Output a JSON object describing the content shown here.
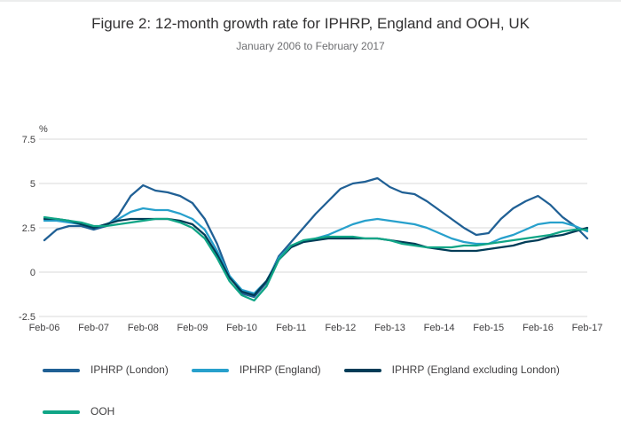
{
  "chart_data": {
    "type": "line",
    "title": "Figure 2: 12-month growth rate for IPHRP, England and OOH, UK",
    "subtitle": "January 2006 to February 2017",
    "ylabel": "%",
    "ylim": [
      -2.5,
      7.5
    ],
    "yticks": [
      7.5,
      5,
      2.5,
      0,
      -2.5
    ],
    "ytick_labels": [
      "7.5",
      "5",
      "2.5",
      "0",
      "-2.5"
    ],
    "xlim": [
      0,
      132
    ],
    "x_tick_positions": [
      0,
      12,
      24,
      36,
      48,
      60,
      72,
      84,
      96,
      108,
      120,
      132
    ],
    "x_tick_labels": [
      "Feb-06",
      "Feb-07",
      "Feb-08",
      "Feb-09",
      "Feb-10",
      "Feb-11",
      "Feb-12",
      "Feb-13",
      "Feb-14",
      "Feb-15",
      "Feb-16",
      "Feb-17"
    ],
    "grid": true,
    "legend_position": "bottom",
    "x_unit": "months since Feb-2006",
    "x": [
      0,
      3,
      6,
      9,
      12,
      15,
      18,
      21,
      24,
      27,
      30,
      33,
      36,
      39,
      42,
      45,
      48,
      51,
      54,
      57,
      60,
      63,
      66,
      69,
      72,
      75,
      78,
      81,
      84,
      87,
      90,
      93,
      96,
      99,
      102,
      105,
      108,
      111,
      114,
      117,
      120,
      123,
      126,
      129,
      132
    ],
    "series": [
      {
        "name": "IPHRP (London)",
        "color": "#206095",
        "values": [
          1.8,
          2.4,
          2.6,
          2.6,
          2.4,
          2.6,
          3.2,
          4.3,
          4.9,
          4.6,
          4.5,
          4.3,
          3.9,
          3.0,
          1.6,
          -0.2,
          -1.2,
          -1.4,
          -0.6,
          0.9,
          1.7,
          2.5,
          3.3,
          4.0,
          4.7,
          5.0,
          5.1,
          5.3,
          4.8,
          4.5,
          4.4,
          4.0,
          3.5,
          3.0,
          2.5,
          2.1,
          2.2,
          3.0,
          3.6,
          4.0,
          4.3,
          3.8,
          3.1,
          2.6,
          1.9
        ]
      },
      {
        "name": "IPHRP (England)",
        "color": "#27a0cc",
        "values": [
          2.9,
          2.9,
          2.8,
          2.7,
          2.5,
          2.7,
          3.0,
          3.4,
          3.6,
          3.5,
          3.5,
          3.3,
          3.0,
          2.4,
          1.2,
          -0.2,
          -1.0,
          -1.2,
          -0.5,
          0.8,
          1.5,
          1.7,
          1.9,
          2.1,
          2.4,
          2.7,
          2.9,
          3.0,
          2.9,
          2.8,
          2.7,
          2.5,
          2.2,
          1.9,
          1.7,
          1.6,
          1.6,
          1.9,
          2.1,
          2.4,
          2.7,
          2.8,
          2.8,
          2.6,
          2.3
        ]
      },
      {
        "name": "IPHRP (England excluding London)",
        "color": "#003c57",
        "values": [
          3.0,
          3.0,
          2.9,
          2.7,
          2.5,
          2.7,
          2.9,
          3.0,
          3.0,
          3.0,
          3.0,
          2.9,
          2.7,
          2.1,
          1.0,
          -0.3,
          -1.1,
          -1.3,
          -0.5,
          0.7,
          1.4,
          1.7,
          1.8,
          1.9,
          1.9,
          1.9,
          1.9,
          1.9,
          1.8,
          1.7,
          1.6,
          1.4,
          1.3,
          1.2,
          1.2,
          1.2,
          1.3,
          1.4,
          1.5,
          1.7,
          1.8,
          2.0,
          2.1,
          2.3,
          2.5
        ]
      },
      {
        "name": "OOH",
        "color": "#10a586",
        "values": [
          3.1,
          3.0,
          2.9,
          2.8,
          2.6,
          2.6,
          2.7,
          2.8,
          2.9,
          3.0,
          3.0,
          2.8,
          2.5,
          1.9,
          0.8,
          -0.5,
          -1.3,
          -1.6,
          -0.8,
          0.7,
          1.5,
          1.8,
          1.9,
          2.0,
          2.0,
          2.0,
          1.9,
          1.9,
          1.8,
          1.6,
          1.5,
          1.4,
          1.4,
          1.4,
          1.5,
          1.5,
          1.6,
          1.7,
          1.8,
          1.9,
          2.0,
          2.1,
          2.3,
          2.4,
          2.4
        ]
      }
    ]
  }
}
